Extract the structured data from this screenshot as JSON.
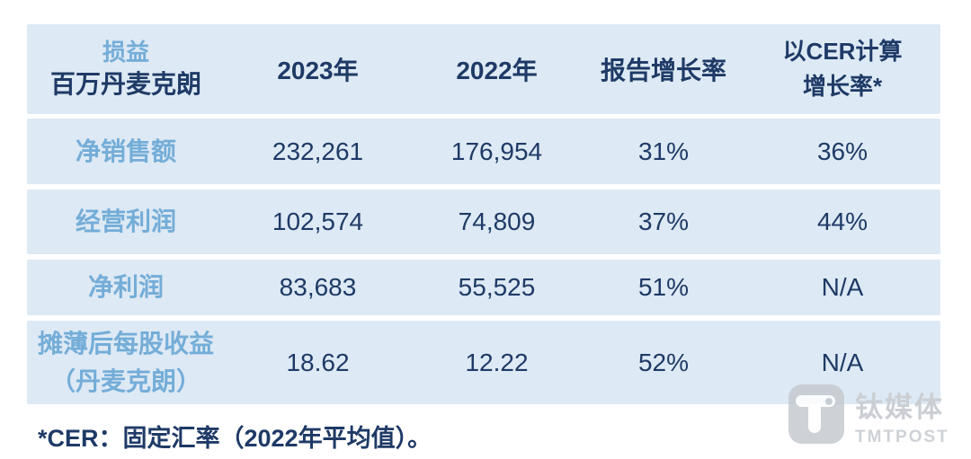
{
  "table": {
    "header": {
      "col1_line1": "损益",
      "col1_line2": "百万丹麦克朗",
      "col2": "2023年",
      "col3": "2022年",
      "col4": "报告增长率",
      "col5_line1": "以CER计算",
      "col5_line2": "增长率*"
    },
    "rows": [
      {
        "label": "净销售额",
        "label2": "",
        "y2023": "232,261",
        "y2022": "176,954",
        "reported_growth": "31%",
        "cer_growth": "36%"
      },
      {
        "label": "经营利润",
        "label2": "",
        "y2023": "102,574",
        "y2022": "74,809",
        "reported_growth": "37%",
        "cer_growth": "44%"
      },
      {
        "label": "净利润",
        "label2": "",
        "y2023": "83,683",
        "y2022": "55,525",
        "reported_growth": "51%",
        "cer_growth": "N/A"
      },
      {
        "label": "摊薄后每股收益",
        "label2": "（丹麦克朗）",
        "y2023": "18.62",
        "y2022": "12.22",
        "reported_growth": "52%",
        "cer_growth": "N/A"
      }
    ]
  },
  "footnote": "*CER：固定汇率（2022年平均值）。",
  "watermark": {
    "name_cn": "钛媒体",
    "name_en": "TMTPOST"
  },
  "colors": {
    "row_background": "#dde9f4",
    "navy_text": "#1e3a66",
    "light_blue_text": "#74add8",
    "watermark_gray": "#c6cad0"
  },
  "chart_data": {
    "type": "table",
    "title": "损益 百万丹麦克朗",
    "columns": [
      "损益 百万丹麦克朗",
      "2023年",
      "2022年",
      "报告增长率",
      "以CER计算增长率*"
    ],
    "rows": [
      [
        "净销售额",
        232261,
        176954,
        "31%",
        "36%"
      ],
      [
        "经营利润",
        102574,
        74809,
        "37%",
        "44%"
      ],
      [
        "净利润",
        83683,
        55525,
        "51%",
        "N/A"
      ],
      [
        "摊薄后每股收益（丹麦克朗）",
        18.62,
        12.22,
        "52%",
        "N/A"
      ]
    ],
    "footnote": "*CER：固定汇率（2022年平均值）。"
  }
}
